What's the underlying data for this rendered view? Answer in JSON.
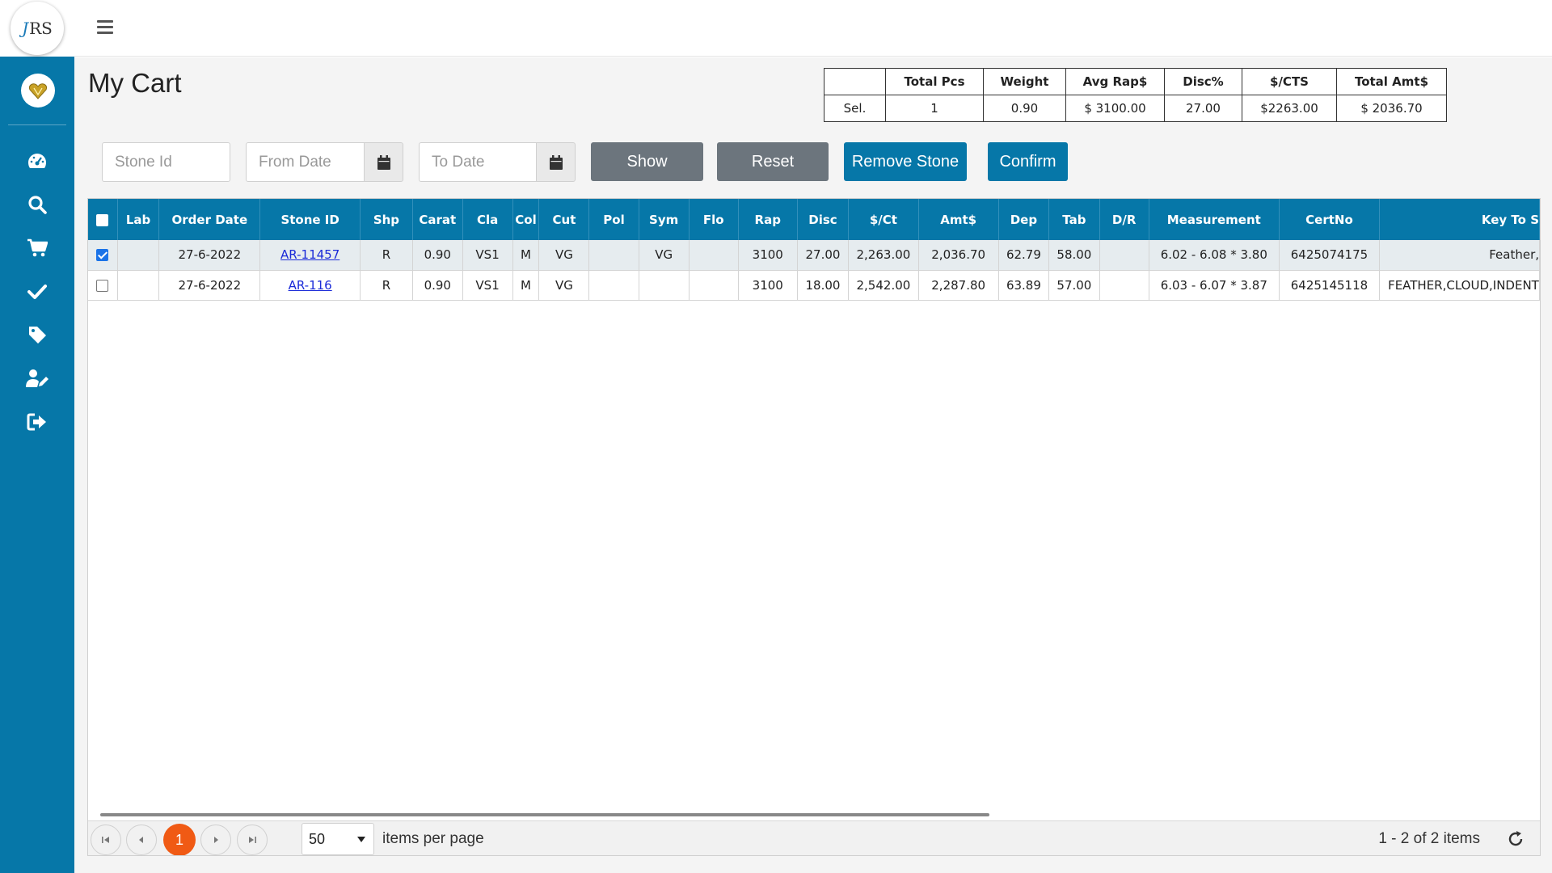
{
  "brand": {
    "logo_text": "RS",
    "logo_prefix": "J"
  },
  "colors": {
    "primary": "#0677a8",
    "grey_button": "#6c757d",
    "pager_current": "#f05a14"
  },
  "sidebar": {
    "icons": [
      "dashboard-icon",
      "search-icon",
      "cart-icon",
      "check-icon",
      "tag-icon",
      "user-edit-icon",
      "logout-icon"
    ]
  },
  "page": {
    "title": "My Cart"
  },
  "summary": {
    "headers": [
      "",
      "Total Pcs",
      "Weight",
      "Avg Rap$",
      "Disc%",
      "$/CTS",
      "Total Amt$"
    ],
    "row": [
      "Sel.",
      "1",
      "0.90",
      "$ 3100.00",
      "27.00",
      "$2263.00",
      "$ 2036.70"
    ]
  },
  "filters": {
    "stone_id_placeholder": "Stone Id",
    "from_date_placeholder": "From Date",
    "to_date_placeholder": "To Date",
    "show_label": "Show",
    "reset_label": "Reset",
    "remove_label": "Remove Stone",
    "confirm_label": "Confirm"
  },
  "grid": {
    "columns": [
      "Lab",
      "Order Date",
      "Stone ID",
      "Shp",
      "Carat",
      "Cla",
      "Col",
      "Cut",
      "Pol",
      "Sym",
      "Flo",
      "Rap",
      "Disc",
      "$/Ct",
      "Amt$",
      "Dep",
      "Tab",
      "D/R",
      "Measurement",
      "CertNo",
      "Key To S"
    ],
    "rows": [
      {
        "checked": true,
        "lab": "",
        "order_date": "27-6-2022",
        "stone_id": "AR-11457",
        "shp": "R",
        "carat": "0.90",
        "cla": "VS1",
        "col": "M",
        "cut": "VG",
        "pol": "",
        "sym": "VG",
        "flo": "",
        "rap": "3100",
        "disc": "27.00",
        "per_ct": "2,263.00",
        "amt": "2,036.70",
        "dep": "62.79",
        "tab": "58.00",
        "dr": "",
        "measurement": "6.02 - 6.08 * 3.80",
        "cert_no": "6425074175",
        "key_to_symbols": "Feather,"
      },
      {
        "checked": false,
        "lab": "",
        "order_date": "27-6-2022",
        "stone_id": "AR-116",
        "shp": "R",
        "carat": "0.90",
        "cla": "VS1",
        "col": "M",
        "cut": "VG",
        "pol": "",
        "sym": "",
        "flo": "",
        "rap": "3100",
        "disc": "18.00",
        "per_ct": "2,542.00",
        "amt": "2,287.80",
        "dep": "63.89",
        "tab": "57.00",
        "dr": "",
        "measurement": "6.03 - 6.07 * 3.87",
        "cert_no": "6425145118",
        "key_to_symbols": "FEATHER,CLOUD,INDENT"
      }
    ]
  },
  "pager": {
    "current_page": "1",
    "page_size": "50",
    "items_per_page_label": "items per page",
    "info": "1 - 2 of 2 items"
  }
}
